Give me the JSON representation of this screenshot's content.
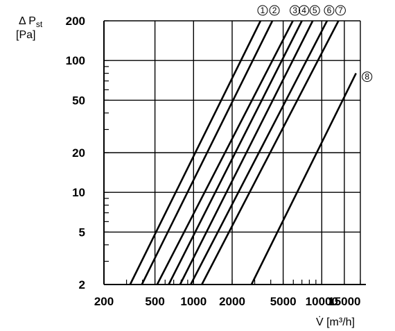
{
  "chart_data": {
    "type": "line",
    "title": "",
    "xlabel": "V̇ [m³/h]",
    "ylabel": "Δ P",
    "ylabel_sub": "st",
    "ylabel_unit": "[Pa]",
    "x_scale": "log",
    "y_scale": "log",
    "xlim": [
      200,
      20000
    ],
    "ylim": [
      2,
      200
    ],
    "grid": true,
    "x_ticks": [
      200,
      500,
      1000,
      2000,
      5000,
      10000,
      15000
    ],
    "x_tick_labels": [
      "200",
      "500",
      "1000",
      "2000",
      "5000",
      "10000",
      "15000"
    ],
    "y_ticks": [
      2,
      5,
      10,
      20,
      50,
      100,
      200
    ],
    "y_tick_labels": [
      "2",
      "5",
      "10",
      "20",
      "50",
      "100",
      "200"
    ],
    "series": [
      {
        "name": "①",
        "x": [
          320,
          3330
        ],
        "y": [
          2,
          200
        ]
      },
      {
        "name": "②",
        "x": [
          395,
          4120
        ],
        "y": [
          2,
          200
        ]
      },
      {
        "name": "③",
        "x": [
          520,
          5950
        ],
        "y": [
          2,
          200
        ]
      },
      {
        "name": "④",
        "x": [
          640,
          7000
        ],
        "y": [
          2,
          200
        ]
      },
      {
        "name": "⑤",
        "x": [
          785,
          8500
        ],
        "y": [
          2,
          200
        ]
      },
      {
        "name": "⑥",
        "x": [
          950,
          11000
        ],
        "y": [
          2,
          200
        ]
      },
      {
        "name": "⑦",
        "x": [
          1160,
          13500
        ],
        "y": [
          2,
          200
        ]
      },
      {
        "name": "⑧",
        "x": [
          2830,
          18500
        ],
        "y": [
          2,
          80
        ]
      }
    ]
  }
}
